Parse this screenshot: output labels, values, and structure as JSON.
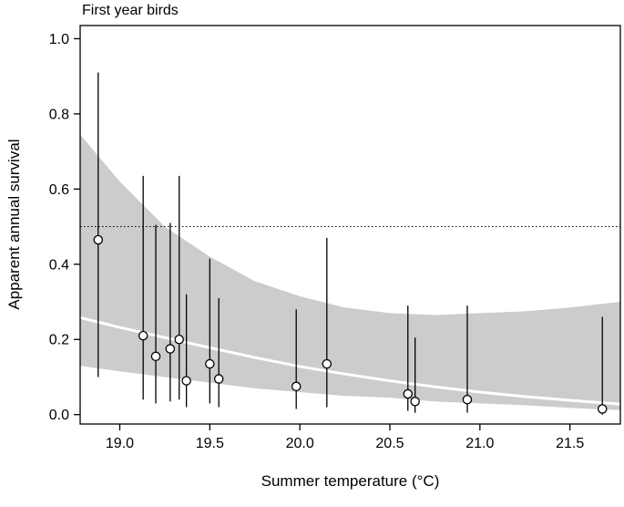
{
  "chart_data": {
    "type": "scatter",
    "title": "First year birds",
    "xlabel": "Summer temperature (°C)",
    "ylabel": "Apparent annual survival",
    "xlim": [
      18.78,
      21.78
    ],
    "ylim": [
      -0.025,
      1.035
    ],
    "xticks": [
      19.0,
      19.5,
      20.0,
      20.5,
      21.0,
      21.5
    ],
    "yticks": [
      0.0,
      0.2,
      0.4,
      0.6,
      0.8,
      1.0
    ],
    "reference_line_y": 0.5,
    "points": [
      {
        "x": 18.88,
        "y": 0.465,
        "lo": 0.1,
        "hi": 0.91
      },
      {
        "x": 19.13,
        "y": 0.21,
        "lo": 0.04,
        "hi": 0.635
      },
      {
        "x": 19.2,
        "y": 0.155,
        "lo": 0.03,
        "hi": 0.505
      },
      {
        "x": 19.28,
        "y": 0.175,
        "lo": 0.035,
        "hi": 0.51
      },
      {
        "x": 19.33,
        "y": 0.2,
        "lo": 0.04,
        "hi": 0.635
      },
      {
        "x": 19.37,
        "y": 0.09,
        "lo": 0.02,
        "hi": 0.32
      },
      {
        "x": 19.5,
        "y": 0.135,
        "lo": 0.03,
        "hi": 0.415
      },
      {
        "x": 19.55,
        "y": 0.095,
        "lo": 0.02,
        "hi": 0.31
      },
      {
        "x": 19.98,
        "y": 0.075,
        "lo": 0.015,
        "hi": 0.28
      },
      {
        "x": 20.15,
        "y": 0.135,
        "lo": 0.02,
        "hi": 0.47
      },
      {
        "x": 20.6,
        "y": 0.055,
        "lo": 0.01,
        "hi": 0.29
      },
      {
        "x": 20.64,
        "y": 0.035,
        "lo": 0.005,
        "hi": 0.205
      },
      {
        "x": 20.93,
        "y": 0.04,
        "lo": 0.005,
        "hi": 0.29
      },
      {
        "x": 21.68,
        "y": 0.015,
        "lo": 0.0,
        "hi": 0.26
      }
    ],
    "fit_line": [
      [
        18.78,
        0.258
      ],
      [
        19.0,
        0.232
      ],
      [
        19.25,
        0.205
      ],
      [
        19.5,
        0.178
      ],
      [
        19.75,
        0.152
      ],
      [
        20.0,
        0.128
      ],
      [
        20.25,
        0.108
      ],
      [
        20.5,
        0.09
      ],
      [
        20.75,
        0.074
      ],
      [
        21.0,
        0.06
      ],
      [
        21.25,
        0.048
      ],
      [
        21.5,
        0.038
      ],
      [
        21.78,
        0.028
      ]
    ],
    "confidence_band": {
      "x": [
        18.78,
        19.0,
        19.25,
        19.5,
        19.75,
        20.0,
        20.25,
        20.5,
        20.75,
        21.0,
        21.25,
        21.5,
        21.78
      ],
      "upper": [
        0.745,
        0.62,
        0.5,
        0.42,
        0.355,
        0.315,
        0.285,
        0.27,
        0.265,
        0.27,
        0.275,
        0.285,
        0.3
      ],
      "lower": [
        0.13,
        0.115,
        0.1,
        0.085,
        0.07,
        0.06,
        0.05,
        0.045,
        0.035,
        0.03,
        0.025,
        0.018,
        0.012
      ]
    },
    "colors": {
      "band": "#cccccc",
      "fit_line": "#ffffff",
      "point_fill": "#ffffff",
      "point_stroke": "#000000",
      "error_bar": "#000000",
      "axis": "#000000"
    }
  }
}
